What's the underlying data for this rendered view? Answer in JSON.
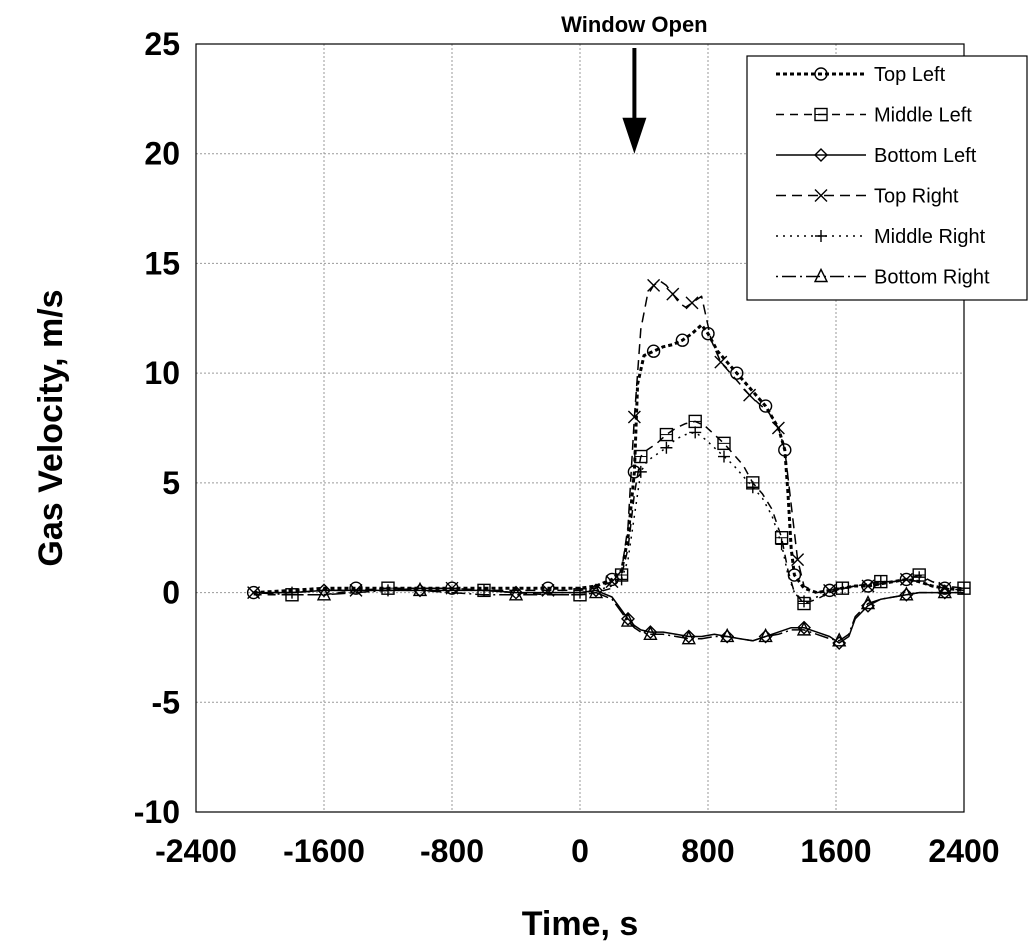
{
  "chart_data": {
    "type": "line",
    "title": "",
    "xlabel": "Time, s",
    "ylabel": "Gas Velocity, m/s",
    "xlim": [
      -2400,
      2400
    ],
    "ylim": [
      -10,
      25
    ],
    "x_ticks": [
      -2400,
      -1600,
      -800,
      0,
      800,
      1600,
      2400
    ],
    "x_tick_labels": [
      "-2400",
      "-1600",
      "-800",
      "0",
      "800",
      "1600",
      "2400"
    ],
    "y_ticks": [
      -10,
      -5,
      0,
      5,
      10,
      15,
      20,
      25
    ],
    "y_tick_labels": [
      "-10",
      "-5",
      "0",
      "5",
      "10",
      "15",
      "20",
      "25"
    ],
    "grid": true,
    "legend_position": "top-right",
    "annotations": [
      {
        "text": "Window Open",
        "x": 340,
        "y": 20,
        "arrow": "down"
      }
    ],
    "series": [
      {
        "name": "Top Left",
        "marker": "circle",
        "dash": "4,3",
        "stroke_width": 3,
        "x": [
          -2040,
          -1800,
          -1600,
          -1400,
          -1200,
          -1000,
          -800,
          -600,
          -400,
          -200,
          0,
          100,
          200,
          260,
          300,
          340,
          360,
          400,
          460,
          520,
          580,
          640,
          700,
          760,
          800,
          860,
          920,
          980,
          1040,
          1100,
          1160,
          1200,
          1240,
          1280,
          1300,
          1320,
          1340,
          1400,
          1480,
          1560,
          1640,
          1720,
          1800,
          1880,
          1960,
          2040,
          2120,
          2200,
          2280,
          2400
        ],
        "y": [
          0,
          0.1,
          0.2,
          0.2,
          0.2,
          0.2,
          0.2,
          0.2,
          0.2,
          0.2,
          0.2,
          0.3,
          0.6,
          1.0,
          2.5,
          5.5,
          9.5,
          10.8,
          11.0,
          11.2,
          11.3,
          11.5,
          11.8,
          12.2,
          11.8,
          11.0,
          10.5,
          10.0,
          9.5,
          9.0,
          8.5,
          8.0,
          7.5,
          6.5,
          4.5,
          2.0,
          0.8,
          0.2,
          0,
          0.1,
          0.2,
          0.3,
          0.3,
          0.4,
          0.5,
          0.6,
          0.5,
          0.3,
          0.2,
          0.1
        ]
      },
      {
        "name": "Middle Left",
        "marker": "square",
        "dash": "8,6",
        "stroke_width": 1.5,
        "x": [
          -2040,
          -1800,
          -1600,
          -1400,
          -1200,
          -1000,
          -800,
          -600,
          -400,
          -200,
          0,
          100,
          200,
          260,
          300,
          340,
          380,
          420,
          480,
          540,
          600,
          660,
          720,
          780,
          840,
          900,
          960,
          1020,
          1080,
          1140,
          1200,
          1260,
          1300,
          1340,
          1400,
          1480,
          1560,
          1640,
          1720,
          1800,
          1880,
          1960,
          2040,
          2120,
          2200,
          2280,
          2400
        ],
        "y": [
          -0.1,
          -0.1,
          -0.1,
          0.1,
          0.2,
          0.2,
          0.2,
          0.1,
          0,
          -0.1,
          -0.1,
          0,
          0.2,
          0.8,
          2.0,
          4.5,
          6.2,
          6.5,
          6.8,
          7.2,
          7.5,
          7.7,
          7.8,
          7.6,
          7.2,
          6.8,
          6.3,
          5.8,
          5.0,
          4.5,
          3.8,
          2.5,
          1.0,
          0,
          -0.5,
          -0.3,
          0,
          0.2,
          0.3,
          0.4,
          0.5,
          0.5,
          0.6,
          0.8,
          0.5,
          0.3,
          0.2
        ]
      },
      {
        "name": "Bottom Left",
        "marker": "diamond",
        "dash": "",
        "stroke_width": 1.5,
        "x": [
          -2040,
          -1800,
          -1600,
          -1400,
          -1200,
          -1000,
          -800,
          -600,
          -400,
          -200,
          0,
          100,
          200,
          260,
          300,
          340,
          380,
          440,
          520,
          600,
          680,
          760,
          840,
          920,
          1000,
          1080,
          1160,
          1240,
          1320,
          1400,
          1480,
          1560,
          1620,
          1680,
          1720,
          1800,
          1880,
          1960,
          2040,
          2120,
          2200,
          2280,
          2400
        ],
        "y": [
          0,
          0,
          0.1,
          0.1,
          0.1,
          0.1,
          0.1,
          0.1,
          0,
          0,
          0,
          0.1,
          -0.2,
          -0.8,
          -1.2,
          -1.5,
          -1.7,
          -1.8,
          -1.8,
          -1.9,
          -2.0,
          -2.0,
          -1.9,
          -2.0,
          -2.1,
          -2.2,
          -2.0,
          -1.8,
          -1.6,
          -1.6,
          -1.8,
          -2.0,
          -2.3,
          -2.0,
          -1.2,
          -0.6,
          -0.3,
          -0.2,
          -0.1,
          0,
          0,
          0,
          0
        ]
      },
      {
        "name": "Top Right",
        "marker": "x",
        "dash": "10,6",
        "stroke_width": 1.5,
        "x": [
          -2040,
          -1800,
          -1600,
          -1400,
          -1200,
          -1000,
          -800,
          -600,
          -400,
          -200,
          0,
          100,
          200,
          260,
          300,
          340,
          380,
          420,
          460,
          500,
          540,
          580,
          620,
          660,
          700,
          760,
          820,
          880,
          940,
          1000,
          1060,
          1120,
          1180,
          1240,
          1280,
          1320,
          1360,
          1400,
          1480,
          1560,
          1640,
          1720,
          1800,
          1880,
          1960,
          2040,
          2120,
          2200,
          2280,
          2400
        ],
        "y": [
          0,
          0,
          0.1,
          0.1,
          0.1,
          0.2,
          0.2,
          0.1,
          0.1,
          0.1,
          0.1,
          0.2,
          0.5,
          1.0,
          3.0,
          8.0,
          12.0,
          13.5,
          14.0,
          14.2,
          14.0,
          13.6,
          13.2,
          13.0,
          13.2,
          13.5,
          11.5,
          10.5,
          10.0,
          9.5,
          9.0,
          8.6,
          8.2,
          7.5,
          6.5,
          4.0,
          1.5,
          0.3,
          0,
          0.1,
          0.2,
          0.3,
          0.3,
          0.4,
          0.5,
          0.6,
          0.5,
          0.3,
          0.2,
          0.1
        ]
      },
      {
        "name": "Middle Right",
        "marker": "plus",
        "dash": "2,5",
        "stroke_width": 1.5,
        "x": [
          -2040,
          -1800,
          -1600,
          -1400,
          -1200,
          -1000,
          -800,
          -600,
          -400,
          -200,
          0,
          100,
          200,
          260,
          300,
          340,
          380,
          420,
          480,
          540,
          600,
          660,
          720,
          780,
          840,
          900,
          960,
          1020,
          1080,
          1140,
          1200,
          1260,
          1300,
          1340,
          1400,
          1480,
          1560,
          1640,
          1720,
          1800,
          1880,
          1960,
          2040,
          2120,
          2200,
          2280,
          2400
        ],
        "y": [
          0,
          0,
          0.1,
          0.1,
          0.1,
          0.1,
          0.1,
          0.1,
          0,
          0,
          0,
          0.1,
          0.3,
          0.6,
          1.5,
          3.5,
          5.5,
          6.0,
          6.3,
          6.6,
          7.0,
          7.2,
          7.3,
          7.0,
          6.6,
          6.2,
          5.8,
          5.3,
          4.8,
          4.3,
          3.5,
          2.2,
          0.8,
          0,
          -0.4,
          -0.2,
          0,
          0.2,
          0.3,
          0.4,
          0.5,
          0.5,
          0.6,
          0.7,
          0.5,
          0.3,
          0.2
        ]
      },
      {
        "name": "Bottom Right",
        "marker": "triangle",
        "dash": "2,4,14,4",
        "stroke_width": 1.5,
        "x": [
          -2040,
          -1800,
          -1600,
          -1400,
          -1200,
          -1000,
          -800,
          -600,
          -400,
          -200,
          0,
          100,
          200,
          260,
          300,
          340,
          380,
          440,
          520,
          600,
          680,
          760,
          840,
          920,
          1000,
          1080,
          1160,
          1240,
          1320,
          1400,
          1480,
          1560,
          1620,
          1680,
          1720,
          1800,
          1880,
          1960,
          2040,
          2120,
          2200,
          2280,
          2400
        ],
        "y": [
          0,
          -0.1,
          -0.1,
          0,
          0.1,
          0.1,
          0,
          -0.1,
          -0.1,
          -0.1,
          -0.1,
          0,
          -0.3,
          -0.9,
          -1.3,
          -1.6,
          -1.8,
          -1.9,
          -1.9,
          -2.0,
          -2.1,
          -2.1,
          -2.0,
          -2.0,
          -2.1,
          -2.2,
          -2.0,
          -1.9,
          -1.7,
          -1.7,
          -1.9,
          -2.1,
          -2.2,
          -1.9,
          -1.1,
          -0.5,
          -0.3,
          -0.2,
          -0.1,
          0,
          0,
          0,
          0
        ]
      }
    ]
  }
}
